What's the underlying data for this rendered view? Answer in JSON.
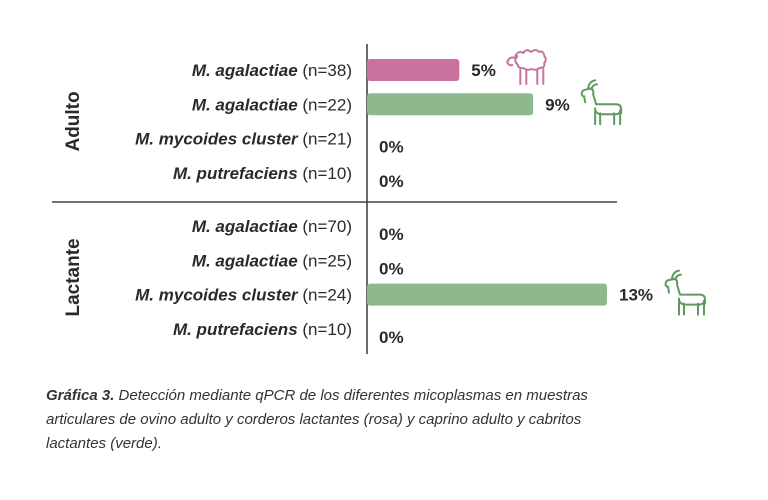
{
  "chart_data": {
    "type": "bar",
    "orientation": "horizontal",
    "groups": [
      {
        "name": "Adulto",
        "rows": [
          {
            "species": "M. agalactiae",
            "n": "(n=38)",
            "value": 5,
            "label": "5%",
            "color": "pink",
            "icon": "sheep-icon"
          },
          {
            "species": "M. agalactiae",
            "n": "(n=22)",
            "value": 9,
            "label": "9%",
            "color": "green",
            "icon": "goat-icon"
          },
          {
            "species": "M. mycoides cluster",
            "n": "(n=21)",
            "value": 0,
            "label": "0%",
            "color": "green",
            "icon": ""
          },
          {
            "species": "M. putrefaciens",
            "n": "(n=10)",
            "value": 0,
            "label": "0%",
            "color": "green",
            "icon": ""
          }
        ]
      },
      {
        "name": "Lactante",
        "rows": [
          {
            "species": "M. agalactiae",
            "n": "(n=70)",
            "value": 0,
            "label": "0%",
            "color": "pink",
            "icon": ""
          },
          {
            "species": "M. agalactiae",
            "n": "(n=25)",
            "value": 0,
            "label": "0%",
            "color": "green",
            "icon": ""
          },
          {
            "species": "M. mycoides cluster",
            "n": "(n=24)",
            "value": 13,
            "label": "13%",
            "color": "green",
            "icon": "goat-icon"
          },
          {
            "species": "M. putrefaciens",
            "n": "(n=10)",
            "value": 0,
            "label": "0%",
            "color": "green",
            "icon": ""
          }
        ]
      }
    ],
    "xlim": [
      0,
      13
    ],
    "grid": false,
    "colors": {
      "pink": "#c8739e",
      "green": "#8fb88f",
      "axis": "#444444",
      "sheep": "#c8739e",
      "goat": "#5f9a5f"
    }
  },
  "caption": {
    "label": "Gráfica 3.",
    "text": " Detección mediante qPCR de los diferentes micoplasmas en muestras articulares de ovino adulto y corderos lactantes (rosa) y caprino adulto y cabritos lactantes (verde)."
  }
}
